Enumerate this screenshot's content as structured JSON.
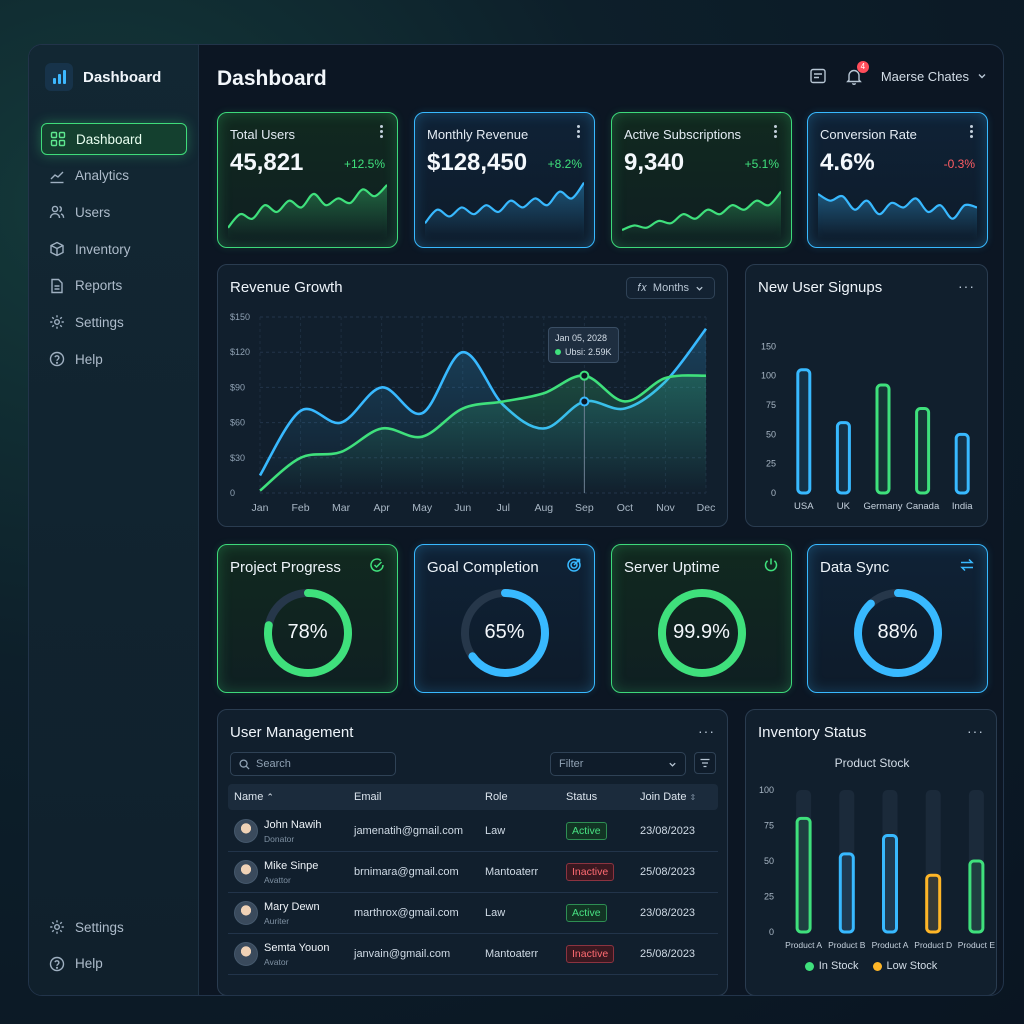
{
  "brand": {
    "title": "Dashboard"
  },
  "sidebar": {
    "items": [
      {
        "label": "Dashboard",
        "icon": "grid-icon",
        "active": true
      },
      {
        "label": "Analytics",
        "icon": "chart-line-icon"
      },
      {
        "label": "Users",
        "icon": "users-icon"
      },
      {
        "label": "Inventory",
        "icon": "box-icon"
      },
      {
        "label": "Reports",
        "icon": "document-icon"
      },
      {
        "label": "Settings",
        "icon": "gear-icon"
      },
      {
        "label": "Help",
        "icon": "help-icon"
      }
    ],
    "bottom": [
      {
        "label": "Settings",
        "icon": "gear-icon"
      },
      {
        "label": "Help",
        "icon": "help-icon"
      }
    ]
  },
  "header": {
    "title": "Dashboard",
    "notification_count": "4",
    "user_name": "Maerse Chates"
  },
  "stats": [
    {
      "title": "Total Users",
      "value": "45,821",
      "delta": "+12.5%",
      "trend": "up",
      "color": "#3fe07c",
      "spark": [
        10,
        22,
        18,
        30,
        24,
        34,
        28,
        40,
        30,
        36,
        32,
        44,
        38,
        48
      ]
    },
    {
      "title": "Monthly Revenue",
      "value": "$128,450",
      "delta": "+8.2%",
      "trend": "up",
      "color": "#38b9ff",
      "spark": [
        14,
        26,
        20,
        28,
        22,
        30,
        24,
        34,
        28,
        36,
        30,
        42,
        36,
        50
      ]
    },
    {
      "title": "Active Subscriptions",
      "value": "9,340",
      "delta": "+5.1%",
      "trend": "up",
      "color": "#3fe07c",
      "spark": [
        8,
        12,
        10,
        16,
        14,
        22,
        18,
        26,
        22,
        30,
        26,
        34,
        30,
        42
      ]
    },
    {
      "title": "Conversion Rate",
      "value": "4.6%",
      "delta": "-0.3%",
      "trend": "down",
      "color": "#38b9ff",
      "spark": [
        40,
        34,
        38,
        26,
        34,
        22,
        32,
        28,
        36,
        24,
        30,
        18,
        30,
        28
      ]
    }
  ],
  "revenue": {
    "title": "Revenue Growth",
    "period": "Months",
    "tooltip": {
      "date": "Jan 05, 2028",
      "label": "Ubsi: 2.59K"
    }
  },
  "signups": {
    "title": "New User Signups"
  },
  "progress": [
    {
      "title": "Project Progress",
      "value": 78,
      "label": "78%",
      "color": "#3fe07c",
      "icon": "check-circle-icon",
      "style": "green"
    },
    {
      "title": "Goal Completion",
      "value": 65,
      "label": "65%",
      "color": "#38b9ff",
      "icon": "target-icon",
      "style": "blue"
    },
    {
      "title": "Server Uptime",
      "value": 99.9,
      "label": "99.9%",
      "color": "#3fe07c",
      "icon": "power-icon",
      "style": "green"
    },
    {
      "title": "Data Sync",
      "value": 88,
      "label": "88%",
      "color": "#38b9ff",
      "icon": "sync-icon",
      "style": "blue"
    }
  ],
  "users": {
    "title": "User Management",
    "search_placeholder": "Search",
    "filter_placeholder": "Filter",
    "columns": [
      "Name",
      "Email",
      "Role",
      "Status",
      "Join Date"
    ],
    "rows": [
      {
        "name": "John Nawih",
        "sub": "Donator",
        "email": "jamenatih@gmail.com",
        "role": "Law",
        "status": "Active",
        "date": "23/08/2023"
      },
      {
        "name": "Mike Sinpe",
        "sub": "Avattor",
        "email": "brnimara@gmail.com",
        "role": "Mantoaterr",
        "status": "Inactive",
        "date": "25/08/2023"
      },
      {
        "name": "Mary Dewn",
        "sub": "Auriter",
        "email": "marthrox@gmail.com",
        "role": "Law",
        "status": "Active",
        "date": "23/08/2023"
      },
      {
        "name": "Semta Youon",
        "sub": "Avator",
        "email": "janvain@gmail.com",
        "role": "Mantoaterr",
        "status": "Inactive",
        "date": "25/08/2023"
      }
    ]
  },
  "inventory": {
    "title": "Inventory Status",
    "legend": [
      {
        "label": "In Stock",
        "color": "#3fe07c"
      },
      {
        "label": "Low Stock",
        "color": "#ffb627"
      }
    ]
  },
  "chart_data": [
    {
      "type": "line",
      "title": "Revenue Growth",
      "categories": [
        "Jan",
        "Feb",
        "Mar",
        "Apr",
        "May",
        "Jun",
        "Jul",
        "Aug",
        "Sep",
        "Oct",
        "Nov",
        "Dec"
      ],
      "ylim": [
        0,
        150
      ],
      "yticks": [
        "0",
        "$30",
        "$60",
        "$90",
        "$120",
        "$150"
      ],
      "series": [
        {
          "color": "#38b9ff",
          "values": [
            15,
            70,
            60,
            90,
            68,
            120,
            75,
            55,
            78,
            72,
            95,
            140
          ]
        },
        {
          "color": "#3fe07c",
          "values": [
            2,
            30,
            35,
            55,
            48,
            72,
            78,
            85,
            100,
            78,
            98,
            100
          ]
        }
      ]
    },
    {
      "type": "bar",
      "title": "New User Signups",
      "categories": [
        "USA",
        "UK",
        "Germany",
        "Canada",
        "India"
      ],
      "values": [
        105,
        60,
        92,
        72,
        50
      ],
      "colors": [
        "#38b9ff",
        "#38b9ff",
        "#3fe07c",
        "#3fe07c",
        "#38b9ff"
      ],
      "ylim": [
        0,
        150
      ],
      "yticks": [
        "0",
        "25",
        "50",
        "75",
        "100",
        "150"
      ]
    },
    {
      "type": "bar",
      "title": "Product Stock",
      "categories": [
        "Product A",
        "Product B",
        "Product A",
        "Product D",
        "Product E"
      ],
      "values": [
        80,
        55,
        68,
        40,
        50
      ],
      "colors": [
        "#3fe07c",
        "#38b9ff",
        "#38b9ff",
        "#ffb627",
        "#3fe07c"
      ],
      "ylim": [
        0,
        100
      ],
      "yticks": [
        "0",
        "25",
        "50",
        "75",
        "100"
      ]
    }
  ]
}
